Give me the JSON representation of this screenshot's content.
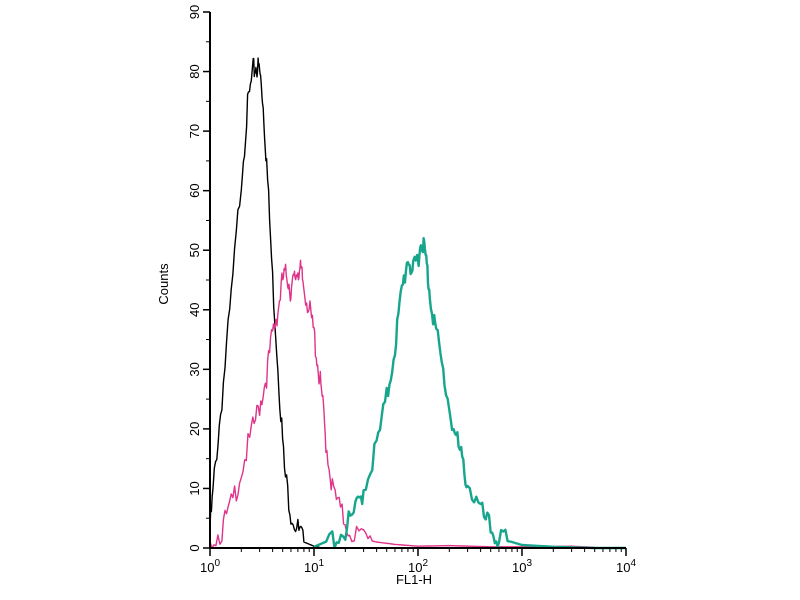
{
  "chart_data": {
    "type": "line",
    "title": "",
    "xlabel": "FL1-H",
    "ylabel": "Counts",
    "x_scale": "log",
    "xlim": [
      1,
      10000
    ],
    "ylim": [
      0,
      90
    ],
    "x_tick_labels": [
      {
        "value": 1,
        "base": "10",
        "exp": "0"
      },
      {
        "value": 10,
        "base": "10",
        "exp": "1"
      },
      {
        "value": 100,
        "base": "10",
        "exp": "2"
      },
      {
        "value": 1000,
        "base": "10",
        "exp": "3"
      },
      {
        "value": 10000,
        "base": "10",
        "exp": "4"
      }
    ],
    "y_ticks": [
      0,
      10,
      20,
      30,
      40,
      50,
      60,
      70,
      80,
      90
    ],
    "grid": false,
    "legend": "none",
    "series": [
      {
        "color": "#000000",
        "stroke_width": 1.4,
        "x": [
          1,
          1.1,
          1.3,
          1.6,
          2.0,
          2.3,
          2.6,
          2.8,
          3.0,
          3.2,
          3.5,
          4.0,
          4.6,
          5.2,
          6.0,
          7.0,
          8.0,
          10.0,
          12.0
        ],
        "y": [
          3,
          12,
          25,
          42,
          62,
          74,
          80,
          81,
          80,
          76,
          65,
          45,
          28,
          13,
          6,
          3,
          1,
          0.3,
          0
        ]
      },
      {
        "color": "#e0338a",
        "stroke_width": 1.4,
        "x": [
          1,
          1.3,
          1.6,
          2.0,
          2.5,
          3.0,
          3.5,
          4.0,
          4.5,
          5.0,
          5.5,
          6.0,
          6.5,
          7.0,
          7.5,
          8.0,
          9.0,
          10.0,
          11.0,
          12.0,
          13.0,
          15.0,
          18.0,
          22.0,
          30.0,
          40.0,
          60.0,
          100.0,
          200.0,
          500.0,
          1000.0,
          3000.0,
          5000.0
        ],
        "y": [
          1,
          3,
          7,
          13,
          19,
          24,
          29,
          36,
          40,
          45,
          46,
          43,
          45,
          47,
          46,
          44,
          40,
          36,
          30,
          25,
          18,
          10,
          6,
          3,
          1.5,
          1,
          0.6,
          0.3,
          0.4,
          0.2,
          0.2,
          0.3,
          0.1
        ]
      },
      {
        "color": "#17a58c",
        "stroke_width": 2.4,
        "x": [
          10,
          15,
          20,
          25,
          30,
          40,
          50,
          60,
          70,
          80,
          90,
          100,
          110,
          120,
          130,
          150,
          180,
          220,
          260,
          300,
          400,
          500,
          600,
          800,
          1000,
          2000,
          5000,
          10000
        ],
        "y": [
          0.2,
          1.5,
          3,
          6,
          10,
          17,
          25,
          34,
          43,
          49,
          46,
          49,
          52,
          48,
          43,
          36,
          28,
          20,
          15,
          11,
          6,
          3,
          1.5,
          1,
          0.5,
          0.2,
          0,
          0
        ]
      }
    ]
  }
}
